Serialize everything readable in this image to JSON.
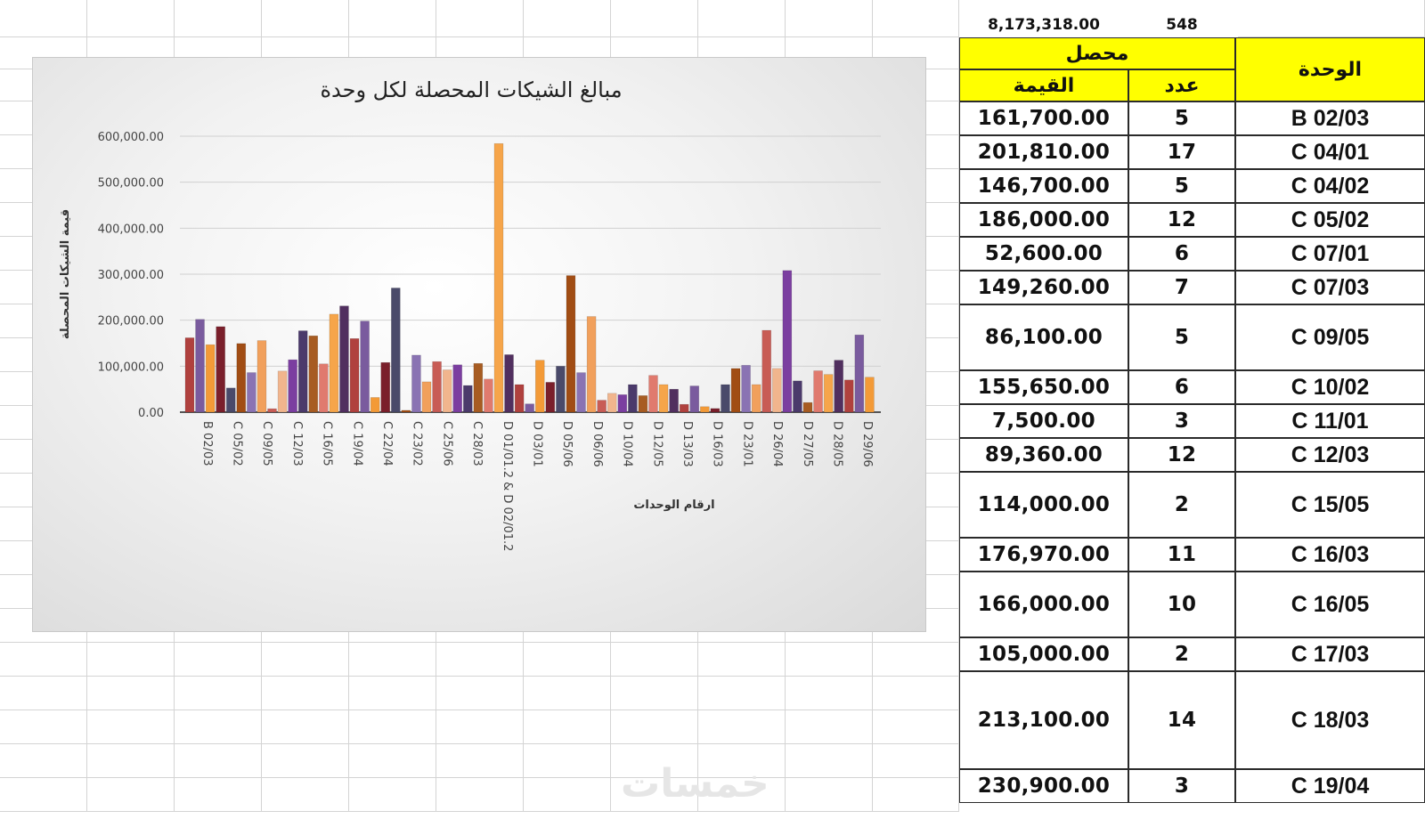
{
  "summary": {
    "total_value": "8,173,318.00",
    "total_count": "548"
  },
  "table": {
    "header_collected": "محصل",
    "header_value": "القيمة",
    "header_count": "عدد",
    "header_unit": "الوحدة",
    "rows": [
      {
        "value": "161,700.00",
        "count": "5",
        "unit": "B 02/03"
      },
      {
        "value": "201,810.00",
        "count": "17",
        "unit": "C 04/01"
      },
      {
        "value": "146,700.00",
        "count": "5",
        "unit": "C 04/02"
      },
      {
        "value": "186,000.00",
        "count": "12",
        "unit": "C 05/02"
      },
      {
        "value": "52,600.00",
        "count": "6",
        "unit": "C 07/01"
      },
      {
        "value": "149,260.00",
        "count": "7",
        "unit": "C 07/03"
      },
      {
        "value": "86,100.00",
        "count": "5",
        "unit": "C 09/05"
      },
      {
        "value": "155,650.00",
        "count": "6",
        "unit": "C 10/02"
      },
      {
        "value": "7,500.00",
        "count": "3",
        "unit": "C 11/01"
      },
      {
        "value": "89,360.00",
        "count": "12",
        "unit": "C 12/03"
      },
      {
        "value": "114,000.00",
        "count": "2",
        "unit": "C 15/05"
      },
      {
        "value": "176,970.00",
        "count": "11",
        "unit": "C 16/03"
      },
      {
        "value": "166,000.00",
        "count": "10",
        "unit": "C 16/05"
      },
      {
        "value": "105,000.00",
        "count": "2",
        "unit": "C 17/03"
      },
      {
        "value": "213,100.00",
        "count": "14",
        "unit": "C 18/03"
      },
      {
        "value": "230,900.00",
        "count": "3",
        "unit": "C 19/04"
      }
    ]
  },
  "watermark": "خمسات",
  "chart_data": {
    "type": "bar",
    "title": "مبالغ الشيكات المحصلة لكل وحدة",
    "xlabel": "ارقام الوحدات",
    "ylabel": "قيمة الشيكات المحصلة",
    "ylim": [
      0,
      600000
    ],
    "yticks": [
      "0.00",
      "100,000.00",
      "200,000.00",
      "300,000.00",
      "400,000.00",
      "500,000.00",
      "600,000.00"
    ],
    "grid": true,
    "tick_labels": [
      "B 02/03",
      "C 05/02",
      "C 09/05",
      "C 12/03",
      "C 16/05",
      "C 19/04",
      "C 22/04",
      "C 23/02",
      "C 25/06",
      "C 28/03",
      "D 01/01.2 & D 02/01.2",
      "D 03/01",
      "D 05/06",
      "D 06/06",
      "D 10/04",
      "D 12/05",
      "D 13/03",
      "D 16/03",
      "D 23/01",
      "D 26/04",
      "D 27/05",
      "D 28/05",
      "D 29/06"
    ],
    "values": [
      161700,
      201810,
      146700,
      186000,
      52600,
      149260,
      86100,
      155650,
      7500,
      89360,
      114000,
      176970,
      166000,
      105000,
      213100,
      230900,
      160000,
      198000,
      32000,
      108000,
      270000,
      4000,
      124000,
      66000,
      110000,
      92000,
      103000,
      58000,
      106000,
      72000,
      584000,
      125000,
      60000,
      18000,
      113000,
      65000,
      100000,
      297000,
      86000,
      208000,
      26000,
      41000,
      38000,
      60000,
      36000,
      80000,
      60000,
      50000,
      17000,
      57000,
      12000,
      8000,
      60000,
      95000,
      102000,
      60000,
      178000,
      95000,
      308000,
      68000,
      21000,
      90000,
      82000,
      113000,
      70000,
      168000,
      76000
    ],
    "colors": [
      "#b0413e",
      "#7a5b9e",
      "#f39a37",
      "#7a1f2b",
      "#4a4a6a",
      "#a14d14",
      "#8a73b3",
      "#f1a05c",
      "#c85c55",
      "#f1b58d",
      "#7b3ea0",
      "#4b3a6b",
      "#a75c22",
      "#e07a6e",
      "#f6a54a",
      "#512f5f"
    ]
  }
}
